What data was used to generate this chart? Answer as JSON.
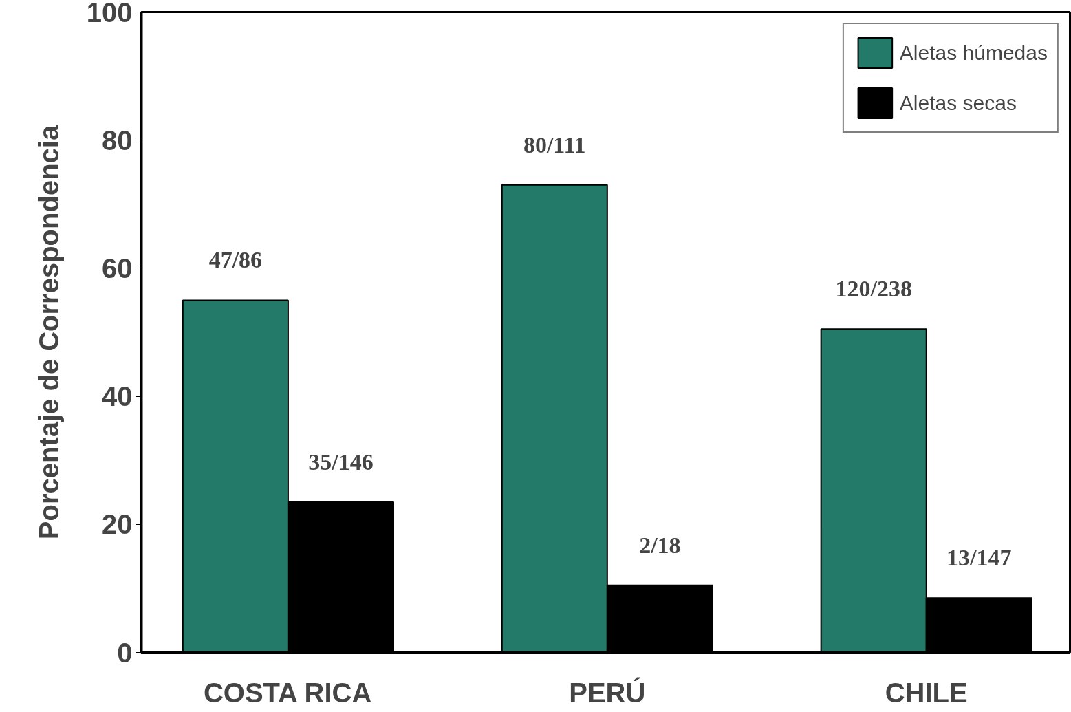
{
  "chart_data": {
    "type": "bar",
    "ylabel": "Porcentaje de Correspondencia",
    "categories": [
      "COSTA RICA",
      "PERÚ",
      "CHILE"
    ],
    "series": [
      {
        "name": "Aletas húmedas",
        "color": "#247a68",
        "values": [
          55,
          73,
          50.5
        ],
        "value_labels": [
          "47/86",
          "80/111",
          "120/238"
        ]
      },
      {
        "name": "Aletas secas",
        "color": "#000000",
        "values": [
          23.5,
          10.5,
          8.5
        ],
        "value_labels": [
          "35/146",
          "2/18",
          "13/147"
        ]
      }
    ],
    "ylim": [
      0,
      100
    ],
    "yticks": [
      0,
      20,
      40,
      60,
      80,
      100
    ],
    "grid": false,
    "legend": "top right"
  }
}
